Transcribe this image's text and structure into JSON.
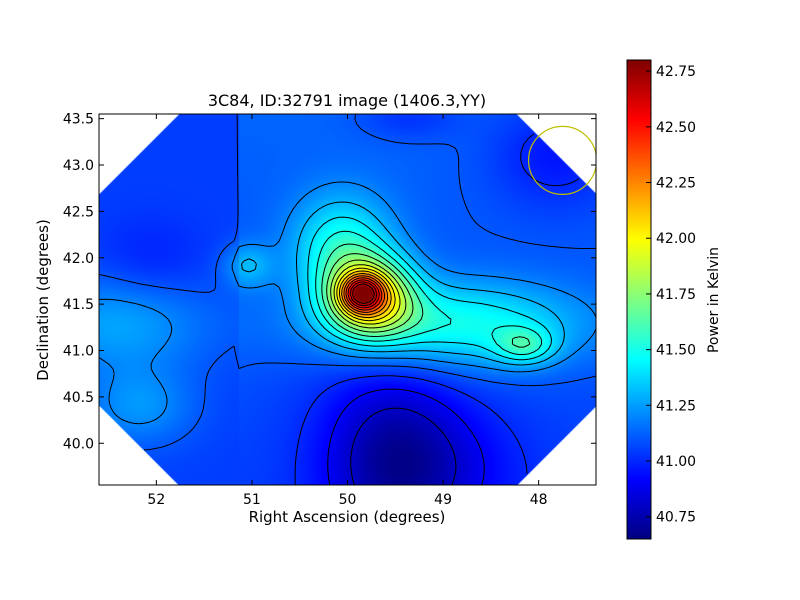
{
  "chart_data": {
    "type": "heatmap",
    "title": "3C84, ID:32791 image (1406.3,YY)",
    "xlabel": "Right Ascension (degrees)",
    "ylabel": "Declination (degrees)",
    "xlim": [
      52.6,
      47.4
    ],
    "ylim": [
      39.55,
      43.55
    ],
    "x_axis_reversed": true,
    "x_ticks": [
      52,
      51,
      50,
      49,
      48
    ],
    "x_tick_labels": [
      "52",
      "51",
      "50",
      "49",
      "48"
    ],
    "y_ticks": [
      40.0,
      40.5,
      41.0,
      41.5,
      42.0,
      42.5,
      43.0,
      43.5
    ],
    "y_tick_labels": [
      "40.0",
      "40.5",
      "41.0",
      "41.5",
      "42.0",
      "42.5",
      "43.0",
      "43.5"
    ],
    "colormap": "jet",
    "colorbar": {
      "label": "Power in Kelvin",
      "range": [
        40.65,
        42.8
      ],
      "ticks": [
        40.75,
        41.0,
        41.25,
        41.5,
        41.75,
        42.0,
        42.25,
        42.5,
        42.75
      ],
      "tick_labels": [
        "40.75",
        "41.00",
        "41.25",
        "41.50",
        "41.75",
        "42.00",
        "42.25",
        "42.50",
        "42.75"
      ]
    },
    "grid": false,
    "contours": true,
    "features": [
      {
        "ra": 49.85,
        "dec": 41.62,
        "peak": 42.78
      },
      {
        "ra": 48.15,
        "dec": 41.05,
        "peak": 41.6
      },
      {
        "ra": 51.05,
        "dec": 41.92,
        "peak": 41.05
      },
      {
        "ra": 49.55,
        "dec": 39.85,
        "peak": 40.72
      },
      {
        "ra": 49.35,
        "dec": 43.52,
        "peak": 40.95
      }
    ],
    "beam": {
      "ra": 47.75,
      "dec": 43.05,
      "color": "#bfbf00"
    }
  }
}
